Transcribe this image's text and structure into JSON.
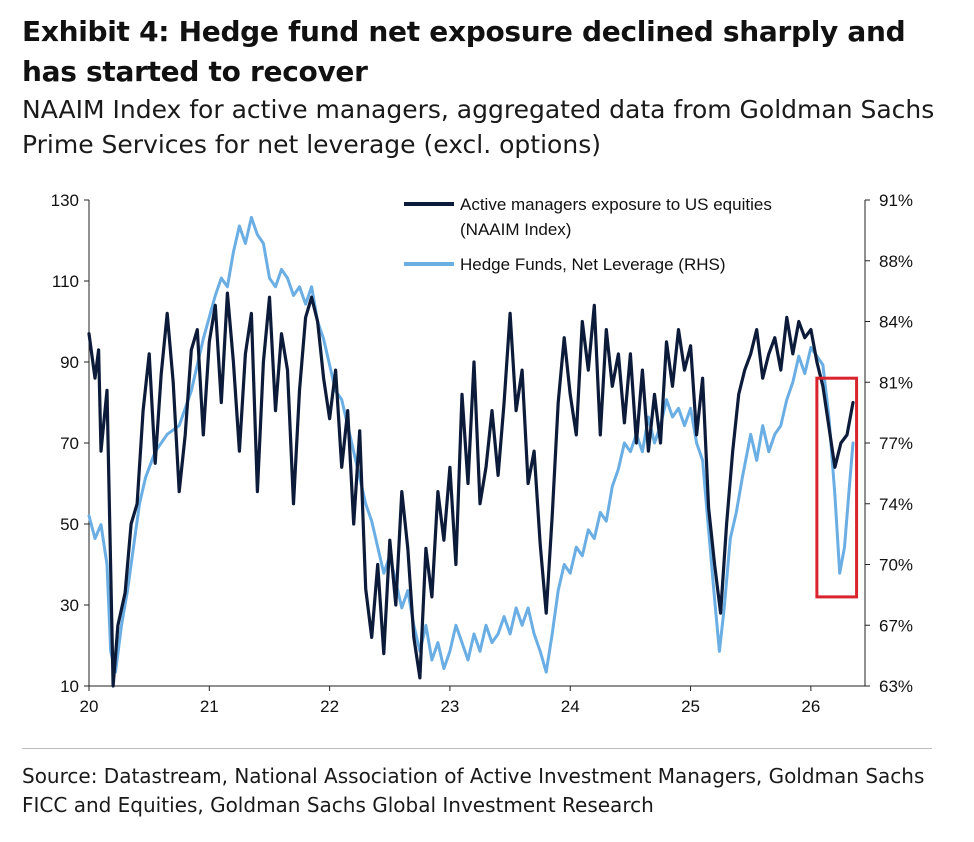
{
  "title": "Exhibit 4: Hedge fund net exposure declined sharply and has started to recover",
  "subtitle": "NAAIM Index for active managers, aggregated data from Goldman Sachs Prime Services for net leverage (excl. options)",
  "source": "Source: Datastream, National Association of Active Investment Managers, Goldman Sachs FICC and Equities, Goldman Sachs Global Investment Research",
  "colors": {
    "naaim": "#0d1b3a",
    "leverage": "#6aaee4",
    "highlight": "#d9232d"
  },
  "chart_data": {
    "type": "line",
    "x_ticks": [
      "20",
      "21",
      "22",
      "23",
      "24",
      "25",
      "26"
    ],
    "left_ticks": [
      "10",
      "30",
      "50",
      "70",
      "90",
      "110",
      "130"
    ],
    "right_ticks": [
      "63%",
      "67%",
      "70%",
      "74%",
      "77%",
      "81%",
      "84%",
      "88%",
      "91%"
    ],
    "left_ylim": [
      10,
      130
    ],
    "right_ylim": [
      63,
      91
    ],
    "x_range": [
      2020.0,
      2026.45
    ],
    "legend_position": "top-right",
    "highlight_box": {
      "x": [
        2026.05,
        2026.38
      ],
      "y_left": [
        32,
        86
      ]
    },
    "series": [
      {
        "name": "Active managers exposure to US equities",
        "name_line2": "(NAAIM Index)",
        "axis": "left",
        "points": [
          [
            2020.0,
            97
          ],
          [
            2020.05,
            86
          ],
          [
            2020.08,
            93
          ],
          [
            2020.1,
            68
          ],
          [
            2020.15,
            83
          ],
          [
            2020.2,
            10
          ],
          [
            2020.24,
            25
          ],
          [
            2020.3,
            33
          ],
          [
            2020.35,
            50
          ],
          [
            2020.4,
            55
          ],
          [
            2020.45,
            78
          ],
          [
            2020.5,
            92
          ],
          [
            2020.55,
            65
          ],
          [
            2020.6,
            87
          ],
          [
            2020.65,
            102
          ],
          [
            2020.7,
            85
          ],
          [
            2020.75,
            58
          ],
          [
            2020.8,
            72
          ],
          [
            2020.85,
            93
          ],
          [
            2020.9,
            98
          ],
          [
            2020.95,
            72
          ],
          [
            2021.0,
            95
          ],
          [
            2021.05,
            104
          ],
          [
            2021.1,
            80
          ],
          [
            2021.15,
            107
          ],
          [
            2021.2,
            90
          ],
          [
            2021.25,
            68
          ],
          [
            2021.3,
            92
          ],
          [
            2021.35,
            102
          ],
          [
            2021.4,
            58
          ],
          [
            2021.45,
            90
          ],
          [
            2021.5,
            106
          ],
          [
            2021.55,
            78
          ],
          [
            2021.6,
            97
          ],
          [
            2021.65,
            88
          ],
          [
            2021.7,
            55
          ],
          [
            2021.75,
            83
          ],
          [
            2021.8,
            101
          ],
          [
            2021.85,
            106
          ],
          [
            2021.9,
            100
          ],
          [
            2021.95,
            86
          ],
          [
            2022.0,
            76
          ],
          [
            2022.05,
            88
          ],
          [
            2022.1,
            64
          ],
          [
            2022.15,
            78
          ],
          [
            2022.2,
            50
          ],
          [
            2022.25,
            73
          ],
          [
            2022.3,
            34
          ],
          [
            2022.35,
            22
          ],
          [
            2022.4,
            40
          ],
          [
            2022.45,
            18
          ],
          [
            2022.5,
            46
          ],
          [
            2022.55,
            30
          ],
          [
            2022.6,
            58
          ],
          [
            2022.65,
            44
          ],
          [
            2022.7,
            22
          ],
          [
            2022.75,
            12
          ],
          [
            2022.8,
            44
          ],
          [
            2022.85,
            32
          ],
          [
            2022.9,
            58
          ],
          [
            2022.95,
            46
          ],
          [
            2023.0,
            64
          ],
          [
            2023.05,
            40
          ],
          [
            2023.1,
            82
          ],
          [
            2023.15,
            60
          ],
          [
            2023.2,
            90
          ],
          [
            2023.25,
            55
          ],
          [
            2023.3,
            64
          ],
          [
            2023.35,
            78
          ],
          [
            2023.4,
            62
          ],
          [
            2023.45,
            80
          ],
          [
            2023.5,
            102
          ],
          [
            2023.55,
            78
          ],
          [
            2023.6,
            88
          ],
          [
            2023.65,
            60
          ],
          [
            2023.7,
            68
          ],
          [
            2023.75,
            45
          ],
          [
            2023.8,
            28
          ],
          [
            2023.85,
            52
          ],
          [
            2023.9,
            80
          ],
          [
            2023.95,
            96
          ],
          [
            2024.0,
            82
          ],
          [
            2024.05,
            72
          ],
          [
            2024.1,
            100
          ],
          [
            2024.15,
            88
          ],
          [
            2024.2,
            104
          ],
          [
            2024.25,
            72
          ],
          [
            2024.3,
            98
          ],
          [
            2024.35,
            84
          ],
          [
            2024.4,
            92
          ],
          [
            2024.45,
            75
          ],
          [
            2024.5,
            92
          ],
          [
            2024.55,
            70
          ],
          [
            2024.6,
            88
          ],
          [
            2024.65,
            68
          ],
          [
            2024.7,
            82
          ],
          [
            2024.75,
            70
          ],
          [
            2024.8,
            95
          ],
          [
            2024.85,
            84
          ],
          [
            2024.9,
            98
          ],
          [
            2024.95,
            88
          ],
          [
            2025.0,
            94
          ],
          [
            2025.05,
            72
          ],
          [
            2025.1,
            86
          ],
          [
            2025.15,
            54
          ],
          [
            2025.2,
            40
          ],
          [
            2025.25,
            28
          ],
          [
            2025.3,
            50
          ],
          [
            2025.35,
            68
          ],
          [
            2025.4,
            82
          ],
          [
            2025.45,
            88
          ],
          [
            2025.5,
            92
          ],
          [
            2025.55,
            98
          ],
          [
            2025.6,
            86
          ],
          [
            2025.65,
            92
          ],
          [
            2025.7,
            96
          ],
          [
            2025.75,
            88
          ],
          [
            2025.8,
            101
          ],
          [
            2025.85,
            92
          ],
          [
            2025.9,
            100
          ],
          [
            2025.95,
            96
          ],
          [
            2026.0,
            98
          ],
          [
            2026.05,
            90
          ],
          [
            2026.1,
            84
          ],
          [
            2026.15,
            74
          ],
          [
            2026.2,
            64
          ],
          [
            2026.25,
            70
          ],
          [
            2026.3,
            72
          ],
          [
            2026.35,
            80
          ]
        ]
      },
      {
        "name": "Hedge Funds, Net Leverage (RHS)",
        "axis": "right",
        "points": [
          [
            2020.0,
            72.8
          ],
          [
            2020.05,
            71.5
          ],
          [
            2020.1,
            72.3
          ],
          [
            2020.15,
            70.0
          ],
          [
            2020.18,
            65.0
          ],
          [
            2020.22,
            63.8
          ],
          [
            2020.27,
            66.5
          ],
          [
            2020.32,
            68.5
          ],
          [
            2020.37,
            71.0
          ],
          [
            2020.42,
            73.5
          ],
          [
            2020.47,
            75.0
          ],
          [
            2020.55,
            76.5
          ],
          [
            2020.65,
            77.5
          ],
          [
            2020.75,
            78.0
          ],
          [
            2020.85,
            80.0
          ],
          [
            2020.95,
            83.0
          ],
          [
            2021.05,
            85.5
          ],
          [
            2021.1,
            86.5
          ],
          [
            2021.15,
            86.0
          ],
          [
            2021.2,
            88.0
          ],
          [
            2021.25,
            89.5
          ],
          [
            2021.3,
            88.5
          ],
          [
            2021.35,
            90.0
          ],
          [
            2021.4,
            89.0
          ],
          [
            2021.45,
            88.5
          ],
          [
            2021.5,
            86.5
          ],
          [
            2021.55,
            86.0
          ],
          [
            2021.6,
            87.0
          ],
          [
            2021.65,
            86.5
          ],
          [
            2021.7,
            85.5
          ],
          [
            2021.75,
            86.0
          ],
          [
            2021.8,
            85.0
          ],
          [
            2021.85,
            86.0
          ],
          [
            2021.9,
            84.0
          ],
          [
            2021.95,
            83.0
          ],
          [
            2022.0,
            81.5
          ],
          [
            2022.05,
            80.0
          ],
          [
            2022.1,
            79.5
          ],
          [
            2022.15,
            78.0
          ],
          [
            2022.2,
            76.5
          ],
          [
            2022.25,
            75.0
          ],
          [
            2022.3,
            73.5
          ],
          [
            2022.35,
            72.5
          ],
          [
            2022.4,
            71.0
          ],
          [
            2022.45,
            69.5
          ],
          [
            2022.5,
            70.5
          ],
          [
            2022.55,
            69.0
          ],
          [
            2022.6,
            67.5
          ],
          [
            2022.65,
            68.5
          ],
          [
            2022.7,
            66.5
          ],
          [
            2022.75,
            65.0
          ],
          [
            2022.8,
            66.5
          ],
          [
            2022.85,
            64.5
          ],
          [
            2022.9,
            65.5
          ],
          [
            2022.95,
            64.0
          ],
          [
            2023.0,
            65.0
          ],
          [
            2023.05,
            66.5
          ],
          [
            2023.1,
            65.5
          ],
          [
            2023.15,
            64.5
          ],
          [
            2023.2,
            66.0
          ],
          [
            2023.25,
            65.0
          ],
          [
            2023.3,
            66.5
          ],
          [
            2023.35,
            65.5
          ],
          [
            2023.4,
            66.0
          ],
          [
            2023.45,
            67.0
          ],
          [
            2023.5,
            66.0
          ],
          [
            2023.55,
            67.5
          ],
          [
            2023.6,
            66.5
          ],
          [
            2023.65,
            67.5
          ],
          [
            2023.7,
            66.0
          ],
          [
            2023.75,
            65.0
          ],
          [
            2023.8,
            63.8
          ],
          [
            2023.85,
            66.0
          ],
          [
            2023.9,
            68.5
          ],
          [
            2023.95,
            70.0
          ],
          [
            2024.0,
            69.5
          ],
          [
            2024.05,
            71.0
          ],
          [
            2024.1,
            70.5
          ],
          [
            2024.15,
            72.0
          ],
          [
            2024.2,
            71.5
          ],
          [
            2024.25,
            73.0
          ],
          [
            2024.3,
            72.5
          ],
          [
            2024.35,
            74.5
          ],
          [
            2024.4,
            75.5
          ],
          [
            2024.45,
            77.0
          ],
          [
            2024.5,
            76.5
          ],
          [
            2024.55,
            77.5
          ],
          [
            2024.6,
            76.5
          ],
          [
            2024.65,
            78.5
          ],
          [
            2024.7,
            77.0
          ],
          [
            2024.75,
            78.0
          ],
          [
            2024.8,
            79.5
          ],
          [
            2024.85,
            78.5
          ],
          [
            2024.9,
            79.0
          ],
          [
            2024.95,
            78.0
          ],
          [
            2025.0,
            79.0
          ],
          [
            2025.05,
            77.0
          ],
          [
            2025.1,
            76.0
          ],
          [
            2025.15,
            72.0
          ],
          [
            2025.2,
            68.0
          ],
          [
            2025.24,
            65.0
          ],
          [
            2025.28,
            67.5
          ],
          [
            2025.33,
            71.5
          ],
          [
            2025.38,
            73.0
          ],
          [
            2025.43,
            75.0
          ],
          [
            2025.5,
            77.5
          ],
          [
            2025.55,
            76.0
          ],
          [
            2025.6,
            78.0
          ],
          [
            2025.65,
            76.5
          ],
          [
            2025.7,
            77.5
          ],
          [
            2025.75,
            78.0
          ],
          [
            2025.8,
            79.5
          ],
          [
            2025.85,
            80.5
          ],
          [
            2025.9,
            82.0
          ],
          [
            2025.95,
            81.0
          ],
          [
            2026.0,
            82.5
          ],
          [
            2026.05,
            82.0
          ],
          [
            2026.1,
            81.5
          ],
          [
            2026.15,
            78.5
          ],
          [
            2026.2,
            74.0
          ],
          [
            2026.24,
            69.5
          ],
          [
            2026.28,
            71.0
          ],
          [
            2026.32,
            74.5
          ],
          [
            2026.35,
            77.0
          ]
        ]
      }
    ]
  }
}
